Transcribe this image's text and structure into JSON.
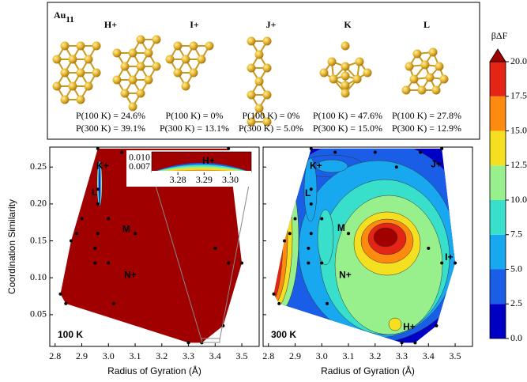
{
  "header": {
    "cluster": "Au",
    "subscript": "11"
  },
  "structures": [
    {
      "label": "H+",
      "p100": "P(100 K) = 24.6%",
      "p300": "P(300 K) = 39.1%"
    },
    {
      "label": "I+",
      "p100": "P(100 K) = 0%",
      "p300": "P(300 K) = 13.1%"
    },
    {
      "label": "J+",
      "p100": "P(100 K) = 0%",
      "p300": "P(300 K) = 5.0%"
    },
    {
      "label": "K",
      "p100": "P(100 K) = 47.6%",
      "p300": "P(300 K) = 15.0%"
    },
    {
      "label": "L",
      "p100": "P(100 K) = 27.8%",
      "p300": "P(300 K) = 12.9%"
    }
  ],
  "chart_data": [
    {
      "type": "contour",
      "panel_label": "100 K",
      "x_label": "Radius of Gyration (Å)",
      "y_label": "Coordination Similarity",
      "xlim": [
        2.78,
        3.565
      ],
      "ylim": [
        0.007,
        0.277
      ],
      "xticks": [
        2.8,
        2.9,
        {
          "value": 3,
          "label": "3.0"
        },
        3.1,
        3.2,
        3.3,
        3.4,
        3.5
      ],
      "yticks": [
        0.05,
        {
          "value": 0.1,
          "label": "0.10"
        },
        0.15,
        {
          "value": 0.2,
          "label": "0.20"
        },
        0.25
      ],
      "points": {
        "x": [
          2.96,
          3.45,
          2.82,
          2.84,
          3.05,
          3.2,
          3.37,
          2.86,
          2.88,
          2.9,
          2.95,
          2.95,
          2.96,
          3.0,
          3.0,
          3.1,
          3.4,
          3.45,
          3.5,
          3.3,
          3.35,
          3.43,
          3.02,
          2.96,
          2.96,
          3.28
        ],
        "y": [
          0.275,
          0.275,
          0.078,
          0.065,
          0.27,
          0.27,
          0.27,
          0.15,
          0.16,
          0.18,
          0.12,
          0.14,
          0.16,
          0.18,
          0.12,
          0.16,
          0.14,
          0.12,
          0.12,
          0.012,
          0.012,
          0.035,
          0.065,
          0.22,
          0.2,
          0.25
        ]
      },
      "annotations": [
        {
          "text": "K+",
          "x": 2.978,
          "y": 0.251
        },
        {
          "text": "L",
          "x": 2.948,
          "y": 0.215
        },
        {
          "text": "M",
          "x": 3.067,
          "y": 0.165
        },
        {
          "text": "N+",
          "x": 3.082,
          "y": 0.103
        }
      ],
      "inset": {
        "xlim": [
          3.27,
          3.308
        ],
        "ylim": [
          0.0052,
          0.0121
        ],
        "xticks": [
          3.28,
          3.29,
          {
            "value": 3.3,
            "label": "3.30"
          }
        ],
        "yticks": [
          {
            "value": 0.01,
            "label": "0.010"
          },
          0.007
        ],
        "annotation": "H+"
      }
    },
    {
      "type": "contour",
      "panel_label": "300 K",
      "x_label": "Radius of Gyration (Å)",
      "xlim": [
        2.78,
        3.565
      ],
      "ylim": [
        0.007,
        0.277
      ],
      "xticks": [
        2.8,
        2.9,
        {
          "value": 3,
          "label": "3.0"
        },
        3.1,
        3.2,
        3.3,
        3.4,
        3.5
      ],
      "yticks": [
        0.05,
        0.1,
        0.15,
        0.2,
        0.25
      ],
      "ytick_labels": false,
      "points": {
        "x": [
          2.96,
          3.45,
          2.82,
          2.84,
          3.05,
          3.2,
          3.37,
          2.86,
          2.88,
          2.9,
          2.95,
          2.95,
          2.96,
          3.0,
          3.0,
          3.1,
          3.4,
          3.45,
          3.5,
          3.3,
          3.35,
          3.43,
          3.02,
          2.96,
          2.96,
          3.28
        ],
        "y": [
          0.275,
          0.275,
          0.078,
          0.065,
          0.27,
          0.27,
          0.27,
          0.15,
          0.16,
          0.18,
          0.12,
          0.14,
          0.16,
          0.18,
          0.12,
          0.16,
          0.14,
          0.12,
          0.12,
          0.012,
          0.012,
          0.035,
          0.065,
          0.22,
          0.2,
          0.25
        ]
      },
      "annotations": [
        {
          "text": "K+",
          "x": 2.978,
          "y": 0.251
        },
        {
          "text": "L",
          "x": 2.948,
          "y": 0.214
        },
        {
          "text": "M",
          "x": 3.073,
          "y": 0.167
        },
        {
          "text": "N+",
          "x": 3.088,
          "y": 0.103
        },
        {
          "text": "H+",
          "x": 3.328,
          "y": 0.033
        },
        {
          "text": "J+",
          "x": 3.429,
          "y": 0.253
        },
        {
          "text": "I+",
          "x": 3.477,
          "y": 0.127
        }
      ]
    }
  ],
  "colorbar": {
    "title": "βΔF",
    "lim": [
      0,
      20
    ],
    "ticks": [
      {
        "value": 0,
        "label": "0.0"
      },
      2.5,
      {
        "value": 5,
        "label": "5.0"
      },
      7.5,
      {
        "value": 10,
        "label": "10.0"
      },
      12.5,
      {
        "value": 15,
        "label": "15.0"
      },
      17.5,
      {
        "value": 20,
        "label": "20.0"
      }
    ],
    "colors": [
      "#0000c4",
      "#1a5ee8",
      "#18a8f0",
      "#38e0cc",
      "#98f08c",
      "#f4e020",
      "#ff8a10",
      "#e42414",
      "#a00000"
    ]
  }
}
